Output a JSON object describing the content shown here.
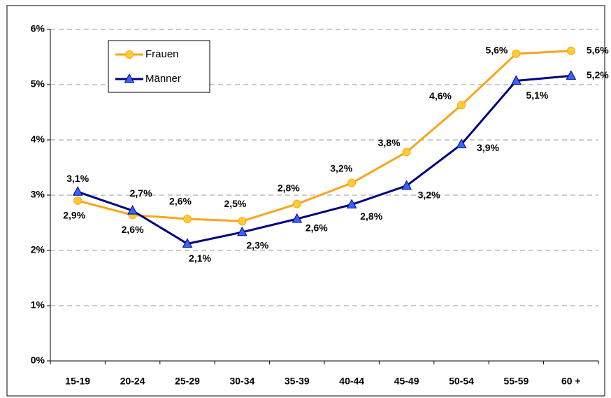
{
  "chart_data": {
    "type": "line",
    "categories": [
      "15-19",
      "20-24",
      "25-29",
      "30-34",
      "35-39",
      "40-44",
      "45-49",
      "50-54",
      "55-59",
      "60 +"
    ],
    "series": [
      {
        "name": "Frauen",
        "color": "#f9a51a",
        "marker": "circle",
        "values": [
          2.9,
          2.64,
          2.57,
          2.53,
          2.84,
          3.22,
          3.78,
          4.63,
          5.56,
          5.61
        ],
        "value_labels": [
          "2,9%",
          "2,6%",
          "2,6%",
          "2,5%",
          "2,8%",
          "3,2%",
          "3,8%",
          "4,6%",
          "5,6%",
          "5,6%"
        ]
      },
      {
        "name": "Männer",
        "color": "#000080",
        "marker": "triangle",
        "values": [
          3.06,
          2.72,
          2.12,
          2.33,
          2.57,
          2.83,
          3.17,
          3.92,
          5.07,
          5.16
        ],
        "value_labels": [
          "3,1%",
          "2,7%",
          "2,1%",
          "2,3%",
          "2,6%",
          "2,8%",
          "3,2%",
          "3,9%",
          "5,1%",
          "5,2%"
        ]
      }
    ],
    "ylim": [
      0,
      6
    ],
    "yticks": [
      {
        "value": 0,
        "label": "0%"
      },
      {
        "value": 1,
        "label": "1%"
      },
      {
        "value": 2,
        "label": "2%"
      },
      {
        "value": 3,
        "label": "3%"
      },
      {
        "value": 4,
        "label": "4%"
      },
      {
        "value": 5,
        "label": "5%"
      },
      {
        "value": 6,
        "label": "6%"
      }
    ],
    "grid": true,
    "legend": "upper left"
  }
}
